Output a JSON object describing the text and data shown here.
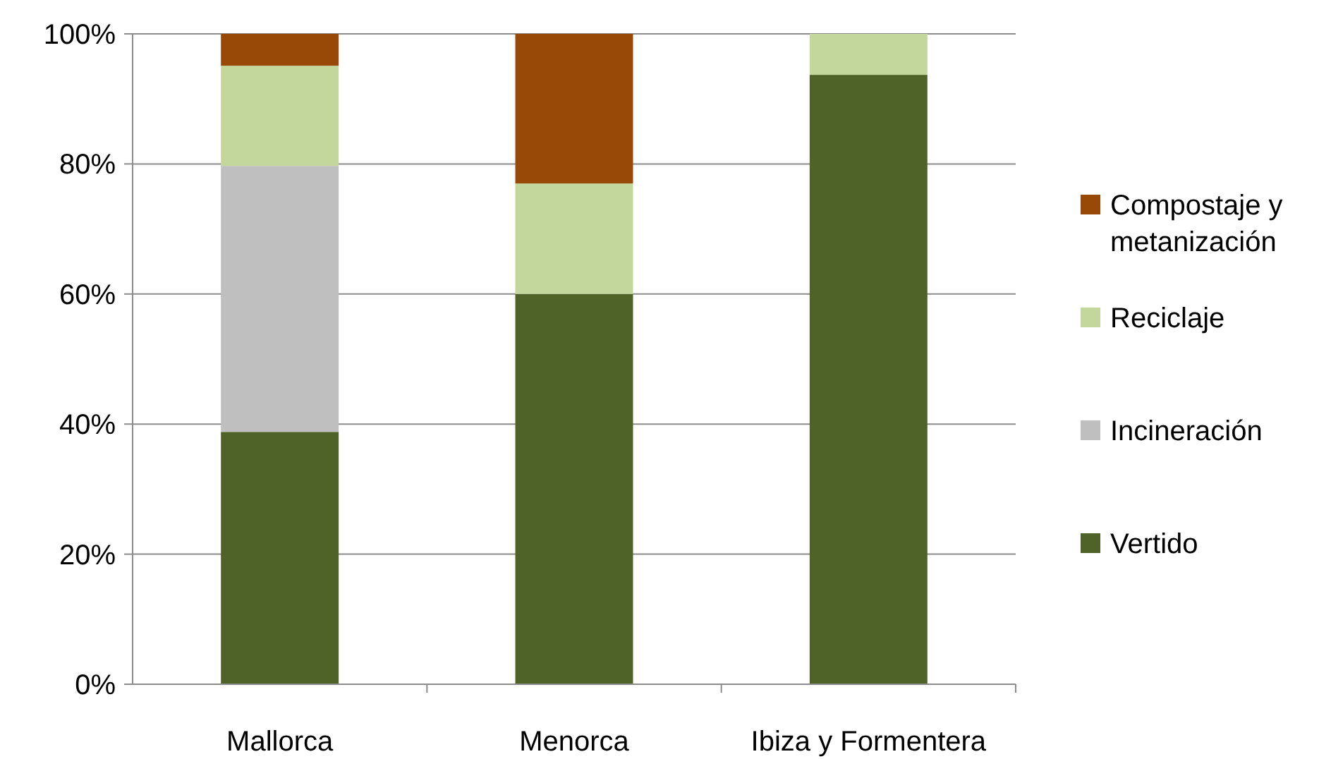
{
  "chart_data": {
    "type": "bar",
    "stacked": true,
    "categories": [
      "Mallorca",
      "Menorca",
      "Ibiza y Formentera"
    ],
    "series": [
      {
        "name": "Vertido",
        "color": "#4f6228",
        "values": [
          38.8,
          60,
          93.7
        ]
      },
      {
        "name": "Incineración",
        "color": "#bfbfbf",
        "values": [
          40.9,
          0,
          0
        ]
      },
      {
        "name": "Reciclaje",
        "color": "#c3d69b",
        "values": [
          15.4,
          17,
          6.3
        ]
      },
      {
        "name": "Compostaje y metanización",
        "color": "#984807",
        "values": [
          4.9,
          23,
          0
        ]
      }
    ],
    "ylim": [
      0,
      100
    ],
    "yticks": [
      {
        "value": 0,
        "label": "0%"
      },
      {
        "value": 20,
        "label": "20%"
      },
      {
        "value": 40,
        "label": "40%"
      },
      {
        "value": 60,
        "label": "60%"
      },
      {
        "value": 80,
        "label": "80%"
      },
      {
        "value": 100,
        "label": "100%"
      }
    ],
    "grid": "y",
    "legend": "right"
  }
}
